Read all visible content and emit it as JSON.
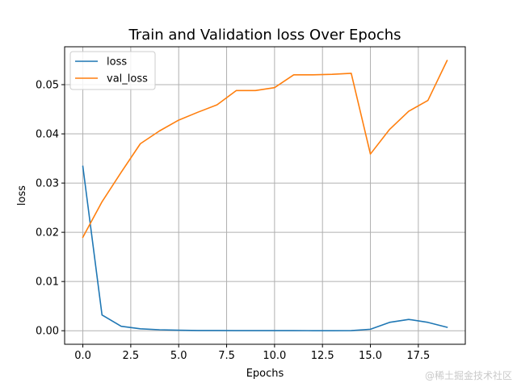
{
  "chart_data": {
    "type": "line",
    "title": "Train and Validation loss Over Epochs",
    "xlabel": "Epochs",
    "ylabel": "loss",
    "xlim": [
      -0.95,
      19.95
    ],
    "ylim": [
      -0.00275,
      0.0577
    ],
    "x_ticks": [
      0.0,
      2.5,
      5.0,
      7.5,
      10.0,
      12.5,
      15.0,
      17.5
    ],
    "x_tick_labels": [
      "0.0",
      "2.5",
      "5.0",
      "7.5",
      "10.0",
      "12.5",
      "15.0",
      "17.5"
    ],
    "y_ticks": [
      0.0,
      0.01,
      0.02,
      0.03,
      0.04,
      0.05
    ],
    "y_tick_labels": [
      "0.00",
      "0.01",
      "0.02",
      "0.03",
      "0.04",
      "0.05"
    ],
    "grid": true,
    "legend_position": "top-left",
    "x": [
      0,
      1,
      2,
      3,
      4,
      5,
      6,
      7,
      8,
      9,
      10,
      11,
      12,
      13,
      14,
      15,
      16,
      17,
      18,
      19
    ],
    "series": [
      {
        "name": "loss",
        "color": "#1f77b4",
        "values": [
          0.0334,
          0.0032,
          0.0009,
          0.0004,
          0.0002,
          0.0001,
          5e-05,
          4e-05,
          3e-05,
          2e-05,
          2e-05,
          2e-05,
          1e-05,
          1e-05,
          2e-05,
          0.0003,
          0.0017,
          0.0023,
          0.0017,
          0.0007
        ]
      },
      {
        "name": "val_loss",
        "color": "#ff7f0e",
        "values": [
          0.019,
          0.0262,
          0.0322,
          0.038,
          0.0406,
          0.0428,
          0.0444,
          0.0459,
          0.0488,
          0.0488,
          0.0494,
          0.052,
          0.052,
          0.0521,
          0.0523,
          0.0359,
          0.0409,
          0.0446,
          0.0468,
          0.0549
        ]
      }
    ]
  },
  "watermark": "@稀土掘金技术社区"
}
